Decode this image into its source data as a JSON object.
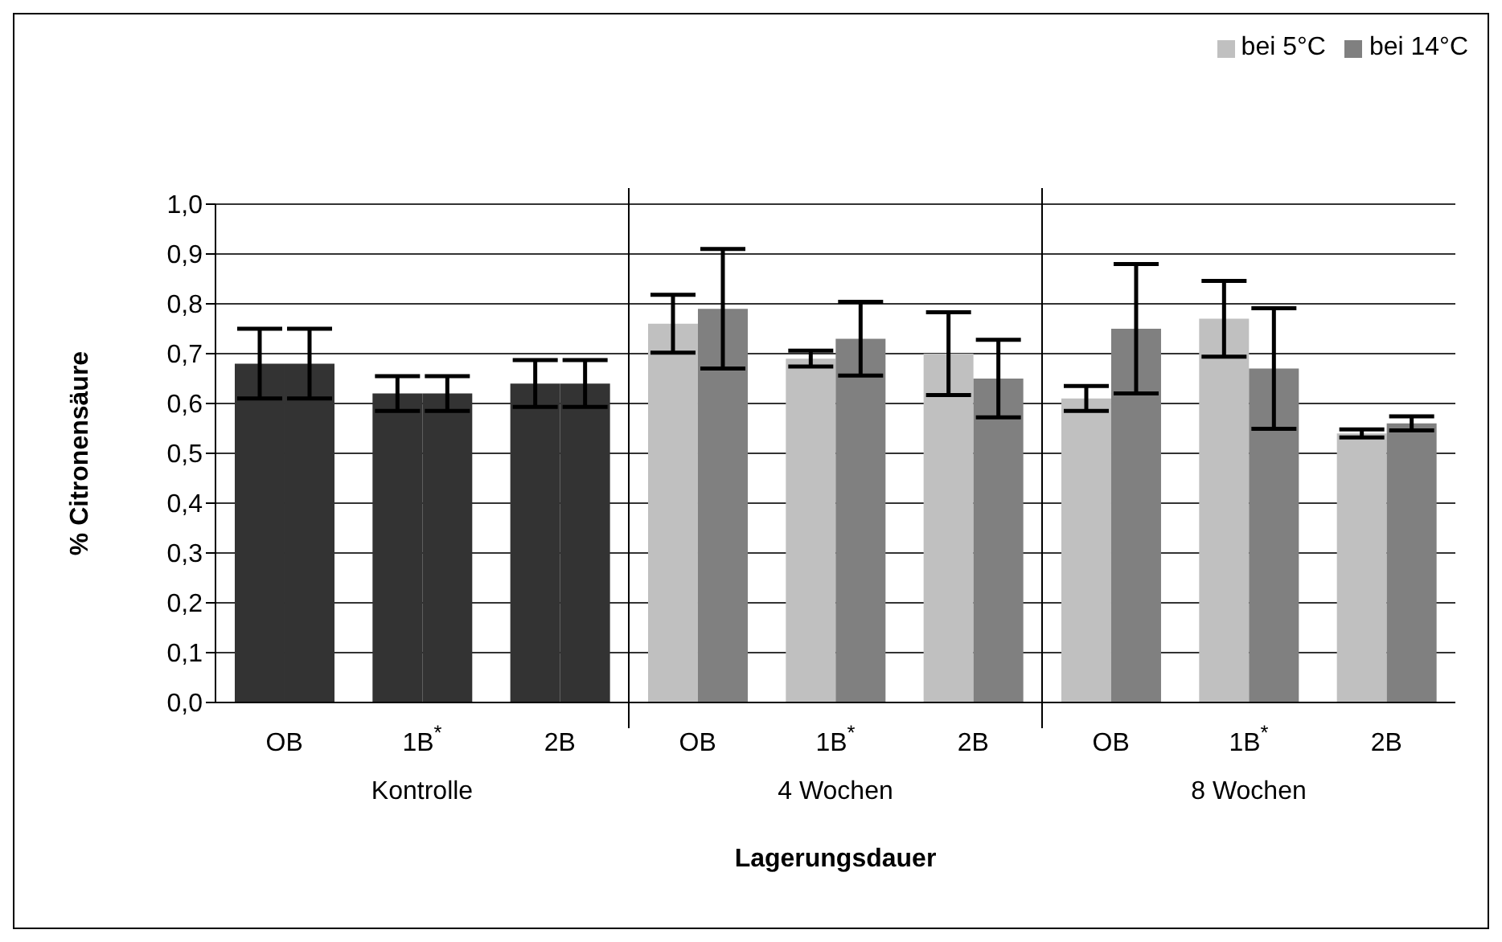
{
  "chart_data": {
    "type": "bar",
    "xlabel": "Lagerungsdauer",
    "ylabel": "% Citronensäure",
    "categories": [
      "OB",
      "1B$^{*}$",
      "2B",
      "OB",
      "1B$^{*}$",
      "2B",
      "OB",
      "1B$^{*}$",
      "2B"
    ],
    "annotations": [
      "Kontrolle",
      "4 Wochen",
      "8 Wochen"
    ],
    "series": [
      {
        "name": "bei 5°C",
        "color": "#c0c0c0",
        "colors": [
          "#333333",
          "#333333",
          "#333333",
          "#c0c0c0",
          "#c0c0c0",
          "#c0c0c0",
          "#c0c0c0",
          "#c0c0c0",
          "#c0c0c0"
        ],
        "values": [
          0.68,
          0.62,
          0.64,
          0.76,
          0.69,
          0.7,
          0.61,
          0.77,
          0.54
        ],
        "errors": [
          0.07,
          0.035,
          0.047,
          0.058,
          0.016,
          0.083,
          0.025,
          0.076,
          0.008
        ]
      },
      {
        "name": "bei 14°C",
        "color": "#808080",
        "colors": [
          "#333333",
          "#333333",
          "#333333",
          "#808080",
          "#808080",
          "#808080",
          "#808080",
          "#808080",
          "#808080"
        ],
        "values": [
          0.68,
          0.62,
          0.64,
          0.79,
          0.73,
          0.65,
          0.75,
          0.67,
          0.56
        ],
        "errors": [
          0.07,
          0.035,
          0.047,
          0.12,
          0.074,
          0.078,
          0.13,
          0.121,
          0.014
        ]
      }
    ],
    "ylim": [
      0,
      1
    ],
    "yticks": [
      {
        "value": 0,
        "label": "0,0"
      },
      {
        "value": 0.1,
        "label": "0,1"
      },
      {
        "value": 0.2,
        "label": "0,2"
      },
      {
        "value": 0.3,
        "label": "0,3"
      },
      {
        "value": 0.4,
        "label": "0,4"
      },
      {
        "value": 0.5,
        "label": "0,5"
      },
      {
        "value": 0.6,
        "label": "0,6"
      },
      {
        "value": 0.7,
        "label": "0,7"
      },
      {
        "value": 0.8,
        "label": "0,8"
      },
      {
        "value": 0.9,
        "label": "0,9"
      },
      {
        "value": 1,
        "label": "1,0"
      }
    ],
    "grid": "y",
    "legend": "top right"
  }
}
